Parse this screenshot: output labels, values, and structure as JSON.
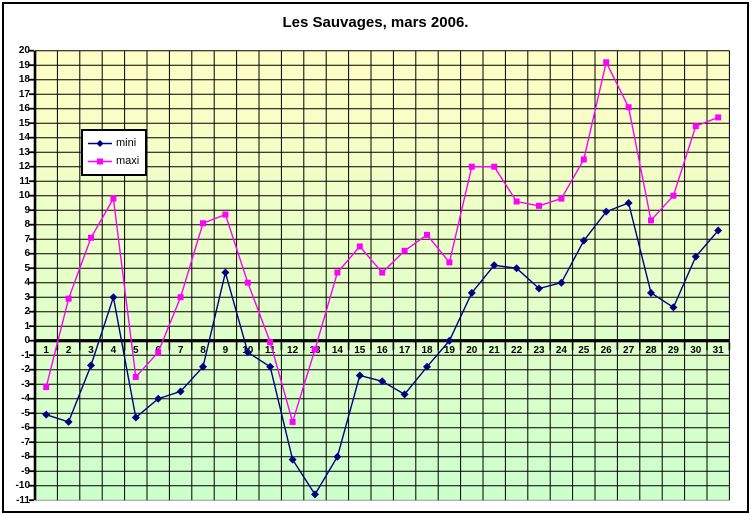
{
  "title": "Les Sauvages, mars 2006.",
  "chart_data": {
    "type": "line",
    "title": "Les Sauvages, mars 2006.",
    "categories": [
      1,
      2,
      3,
      4,
      5,
      6,
      7,
      8,
      9,
      10,
      11,
      12,
      13,
      14,
      15,
      16,
      17,
      18,
      19,
      20,
      21,
      22,
      23,
      24,
      25,
      26,
      27,
      28,
      29,
      30,
      31
    ],
    "series": [
      {
        "name": "mini",
        "color": "#000080",
        "marker": "diamond",
        "values": [
          -5.1,
          -5.6,
          -1.7,
          3,
          -5.3,
          -4,
          -3.5,
          -1.8,
          4.7,
          -0.8,
          -1.8,
          -8.2,
          -10.6,
          -8,
          -2.4,
          -2.8,
          -3.7,
          -1.8,
          0,
          3.3,
          5.2,
          5,
          3.6,
          4,
          6.9,
          8.9,
          9.5,
          3.3,
          2.3,
          5.8,
          7.6
        ]
      },
      {
        "name": "maxi",
        "color": "#FF00FF",
        "marker": "square",
        "values": [
          -3.2,
          2.9,
          7.1,
          9.8,
          -2.5,
          -0.8,
          3,
          8.1,
          8.7,
          4,
          -0.1,
          -5.6,
          -0.6,
          4.7,
          6.5,
          4.7,
          6.2,
          7.3,
          5.4,
          12,
          12,
          9.6,
          9.3,
          9.8,
          12.5,
          19.2,
          16.1,
          8.3,
          10,
          14.8,
          15.4
        ]
      }
    ],
    "xlabel": "",
    "ylabel": "",
    "ylim": [
      -11,
      20
    ],
    "ytick_step": 1,
    "y_tick_labels": [
      20,
      19,
      18,
      17,
      16,
      15,
      14,
      13,
      12,
      11,
      10,
      9,
      8,
      7,
      6,
      5,
      4,
      3,
      2,
      1,
      0,
      -1,
      -2,
      -3,
      -4,
      -5,
      -6,
      -7,
      -8,
      -9,
      -10,
      -11
    ],
    "grid": true,
    "legend_position": "upper-left-inside",
    "colors": {
      "plot_bg_top": "#FFFFC5",
      "plot_bg_bottom": "#CCFFCC",
      "grid": "#000000",
      "axis": "#000000",
      "plot_bottom_edge": "#999999",
      "page_bg": "#FFFFFF",
      "outer_border": "#000000"
    }
  }
}
